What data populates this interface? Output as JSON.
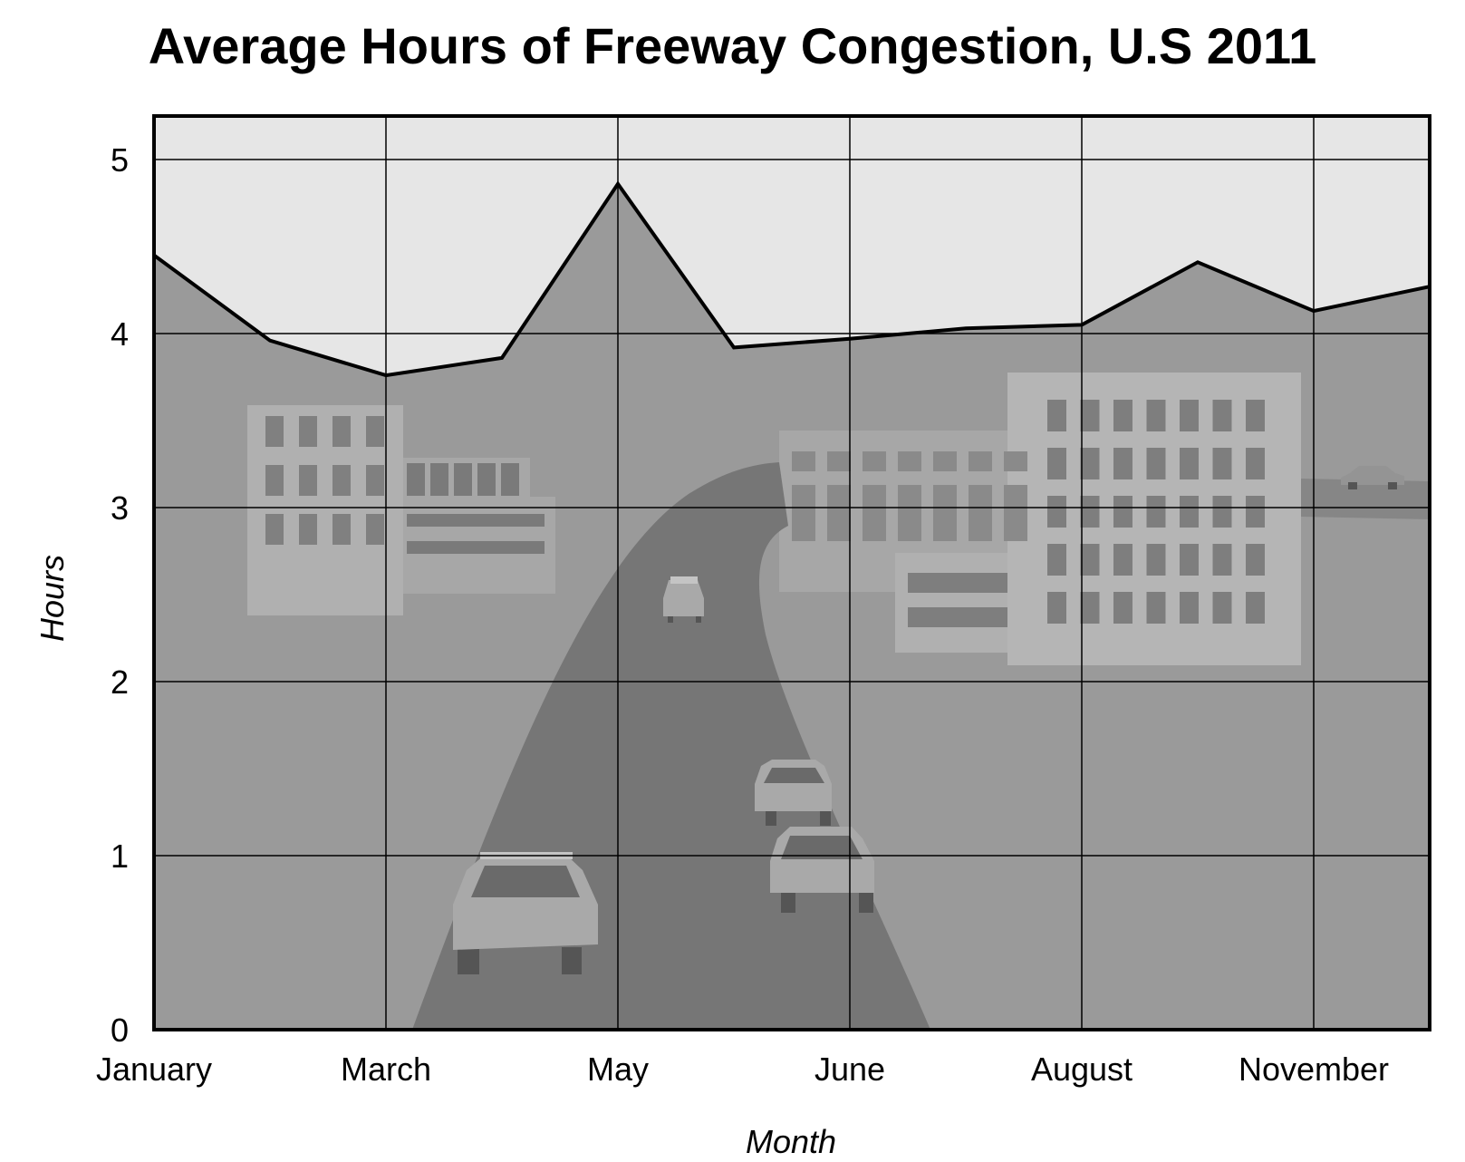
{
  "chart_data": {
    "type": "area",
    "title": "Average Hours of Freeway Congestion, U.S 2011",
    "xlabel": "Month",
    "ylabel": "Hours",
    "x_tick_labels": [
      "January",
      "March",
      "May",
      "June",
      "August",
      "November"
    ],
    "x": [
      0,
      1,
      2,
      3,
      4,
      5,
      6,
      7,
      8,
      9,
      10,
      11
    ],
    "values": [
      4.45,
      3.96,
      3.76,
      3.86,
      4.86,
      3.92,
      3.97,
      4.03,
      4.05,
      4.41,
      4.13,
      4.27
    ],
    "ylim": [
      0,
      5.25
    ],
    "yticks": [
      0,
      1,
      2,
      3,
      4,
      5
    ],
    "grid": true,
    "legend": "none",
    "background_image": "city-freeway-with-cars",
    "colors": {
      "area_fill": "#9a9a9a",
      "sky": "#e6e6e6",
      "line": "#000000",
      "road": "#767676",
      "building": "#b0b0b0"
    }
  }
}
